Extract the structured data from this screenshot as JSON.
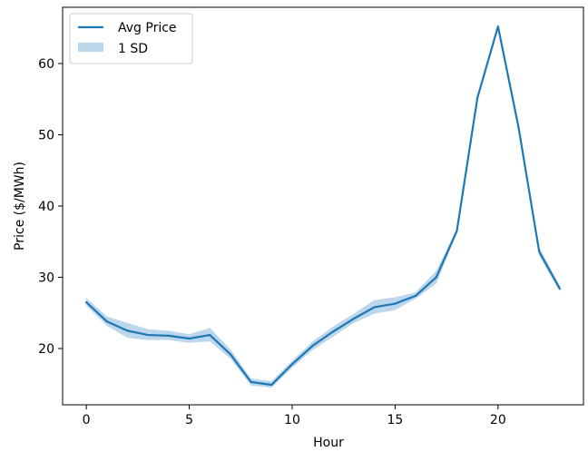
{
  "chart_data": {
    "type": "line",
    "xlabel": "Hour",
    "ylabel": "Price ($/MWh)",
    "xlim": [
      -1.15,
      24.15
    ],
    "ylim": [
      12.1,
      67.9
    ],
    "x_ticks": [
      0,
      5,
      10,
      15,
      20
    ],
    "y_ticks": [
      20,
      30,
      40,
      50,
      60
    ],
    "grid": false,
    "legend_location": "upper left",
    "x": [
      0,
      1,
      2,
      3,
      4,
      5,
      6,
      7,
      8,
      9,
      10,
      11,
      12,
      13,
      14,
      15,
      16,
      17,
      18,
      19,
      20,
      21,
      22,
      23
    ],
    "series": [
      {
        "name": "Avg Price",
        "kind": "line",
        "color": "#1f77b4",
        "values": [
          26.5,
          23.8,
          22.5,
          21.9,
          21.8,
          21.4,
          21.9,
          19.2,
          15.3,
          14.9,
          17.8,
          20.4,
          22.4,
          24.2,
          25.8,
          26.3,
          27.4,
          30.0,
          36.5,
          55.2,
          65.2,
          51.0,
          33.6,
          28.4
        ]
      },
      {
        "name": "1 SD",
        "kind": "band",
        "color": "#a6c8e4",
        "lower": [
          26.0,
          23.2,
          21.5,
          21.2,
          21.2,
          20.8,
          21.0,
          18.6,
          14.8,
          14.5,
          17.3,
          19.8,
          21.7,
          23.6,
          24.9,
          25.4,
          27.0,
          29.1,
          36.2,
          55.0,
          65.0,
          50.8,
          33.0,
          28.0
        ],
        "upper": [
          27.1,
          24.5,
          23.6,
          22.7,
          22.5,
          22.0,
          22.9,
          19.9,
          15.8,
          15.4,
          18.3,
          21.0,
          23.1,
          24.9,
          26.8,
          27.2,
          27.9,
          30.9,
          36.8,
          55.4,
          65.4,
          51.2,
          34.2,
          28.8
        ]
      }
    ]
  }
}
